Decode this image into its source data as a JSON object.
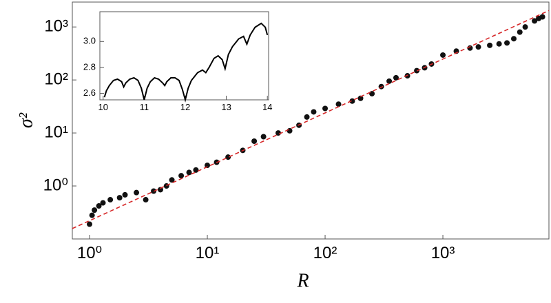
{
  "chart_data": [
    {
      "type": "scatter",
      "x_label": "R",
      "y_label": "σ²",
      "log_x": true,
      "log_y": true,
      "grid": false,
      "xlim": [
        0.714,
        7950
      ],
      "ylim": [
        0.1,
        2950
      ],
      "xticks": [
        {
          "value": 1,
          "label": "10⁰"
        },
        {
          "value": 10,
          "label": "10¹"
        },
        {
          "value": 100,
          "label": "10²"
        },
        {
          "value": 1000,
          "label": "10³"
        }
      ],
      "yticks": [
        {
          "value": 1,
          "label": "10⁰"
        },
        {
          "value": 10,
          "label": "10¹"
        },
        {
          "value": 100,
          "label": "10²"
        },
        {
          "value": 1000,
          "label": "10³"
        }
      ],
      "series": [
        {
          "mode": "markers",
          "color": "#111111",
          "x": [
            1,
            1.05,
            1.1,
            1.2,
            1.3,
            1.5,
            1.8,
            2,
            2.5,
            3,
            3.5,
            4,
            4.5,
            5,
            6,
            7,
            8,
            10,
            12,
            15,
            20,
            25,
            30,
            40,
            50,
            60,
            70,
            80,
            100,
            130,
            170,
            200,
            250,
            300,
            350,
            400,
            500,
            600,
            700,
            800,
            1000,
            1300,
            1700,
            2000,
            2500,
            3000,
            3500,
            4000,
            4500,
            5000,
            6000,
            6500,
            7000
          ],
          "values": [
            0.19,
            0.28,
            0.35,
            0.42,
            0.48,
            0.55,
            0.6,
            0.68,
            0.75,
            0.55,
            0.8,
            0.85,
            1.0,
            1.3,
            1.56,
            1.8,
            2.0,
            2.45,
            2.8,
            3.5,
            4.7,
            7,
            8.5,
            10,
            11,
            14,
            20,
            25,
            29,
            35,
            40,
            45,
            55,
            75,
            95,
            110,
            120,
            150,
            170,
            200,
            295,
            350,
            400,
            420,
            450,
            480,
            500,
            600,
            800,
            1000,
            1300,
            1450,
            1550
          ]
        },
        {
          "mode": "dashed-line",
          "color": "#d62728",
          "x": [
            0.714,
            7950
          ],
          "values": [
            0.157,
            2040
          ]
        }
      ]
    },
    {
      "type": "line",
      "xlim": [
        9.92,
        14.03
      ],
      "ylim": [
        2.55,
        3.23
      ],
      "xticks": [
        10,
        11,
        12,
        13,
        14
      ],
      "yticks": [
        2.6,
        2.8,
        {
          "value": 3,
          "label": "3.0"
        }
      ],
      "series": [
        {
          "mode": "line",
          "color": "#000000",
          "x": [
            10.03,
            10.08,
            10.15,
            10.25,
            10.35,
            10.45,
            10.5,
            10.55,
            10.65,
            10.75,
            10.85,
            10.93,
            11,
            11.07,
            11.15,
            11.25,
            11.35,
            11.45,
            11.5,
            11.55,
            11.65,
            11.75,
            11.85,
            11.93,
            12,
            12.07,
            12.15,
            12.3,
            12.42,
            12.5,
            12.58,
            12.7,
            12.8,
            12.9,
            12.97,
            13.05,
            13.15,
            13.3,
            13.42,
            13.5,
            13.58,
            13.7,
            13.85,
            13.95,
            14
          ],
          "values": [
            2.57,
            2.62,
            2.66,
            2.7,
            2.71,
            2.69,
            2.65,
            2.68,
            2.71,
            2.72,
            2.7,
            2.64,
            2.55,
            2.64,
            2.69,
            2.72,
            2.71,
            2.68,
            2.66,
            2.69,
            2.72,
            2.72,
            2.7,
            2.63,
            2.55,
            2.64,
            2.7,
            2.76,
            2.78,
            2.76,
            2.8,
            2.87,
            2.89,
            2.86,
            2.79,
            2.9,
            2.96,
            3.02,
            3.04,
            2.98,
            3.05,
            3.11,
            3.14,
            3.11,
            3.05
          ]
        }
      ]
    }
  ]
}
